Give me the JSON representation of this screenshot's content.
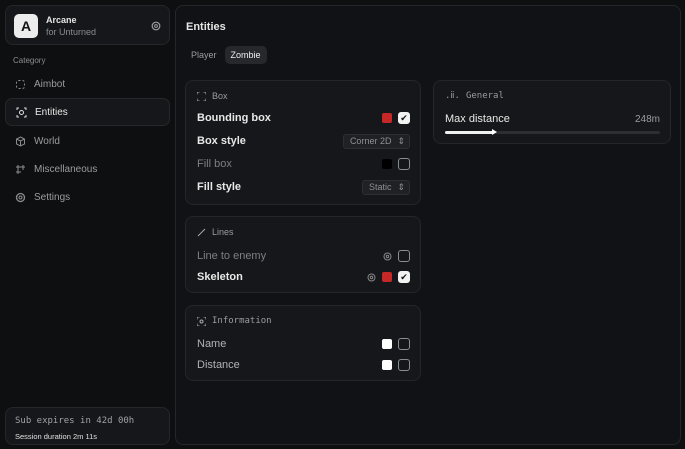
{
  "app": {
    "logo_letter": "A",
    "name": "Arcane",
    "subtitle": "for Unturned"
  },
  "sidebar": {
    "category_label": "Category",
    "items": [
      {
        "label": "Aimbot",
        "icon": "crosshair-icon",
        "active": false
      },
      {
        "label": "Entities",
        "icon": "entities-icon",
        "active": true
      },
      {
        "label": "World",
        "icon": "cube-icon",
        "active": false
      },
      {
        "label": "Miscellaneous",
        "icon": "grid-icon",
        "active": false
      },
      {
        "label": "Settings",
        "icon": "gear-icon",
        "active": false
      }
    ]
  },
  "footer": {
    "sub_expiry": "Sub expires in 42d 00h",
    "session": "Session duration 2m 11s"
  },
  "main": {
    "title": "Entities",
    "tabs": [
      {
        "label": "Player",
        "active": false
      },
      {
        "label": "Zombie",
        "active": true
      }
    ]
  },
  "box": {
    "title": "Box",
    "bounding_box": {
      "label": "Bounding box",
      "color": "#c62828",
      "checked": true
    },
    "box_style": {
      "label": "Box style",
      "value": "Corner 2D"
    },
    "fill_box": {
      "label": "Fill box",
      "color": "#000000",
      "checked": false
    },
    "fill_style": {
      "label": "Fill style",
      "value": "Static"
    }
  },
  "lines": {
    "title": "Lines",
    "line_to_enemy": {
      "label": "Line to enemy",
      "checked": false
    },
    "skeleton": {
      "label": "Skeleton",
      "color": "#c62828",
      "checked": true
    }
  },
  "information": {
    "title": "Information",
    "name": {
      "label": "Name",
      "color": "#ffffff",
      "checked": false
    },
    "distance": {
      "label": "Distance",
      "color": "#ffffff",
      "checked": false
    }
  },
  "general": {
    "title": "General",
    "max_distance": {
      "label": "Max distance",
      "value": "248m",
      "fill_fraction": 0.23
    }
  }
}
